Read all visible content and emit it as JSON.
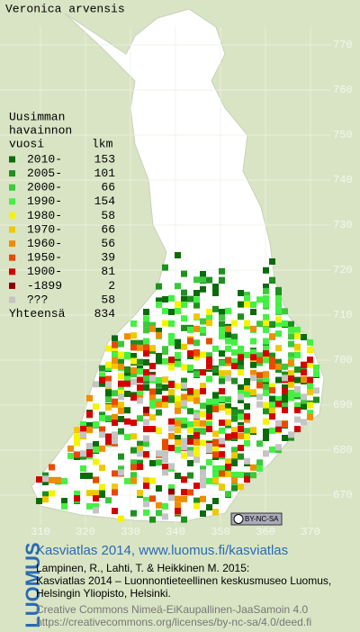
{
  "title": "Veronica arvensis",
  "legend": {
    "header": [
      "Uusimman",
      "havainnon",
      "vuosi"
    ],
    "count_header": "lkm",
    "entries": [
      {
        "label": "2010-",
        "count": 153,
        "color": "#0b6b0b"
      },
      {
        "label": "2005-",
        "count": 101,
        "color": "#1f8f1f"
      },
      {
        "label": "2000-",
        "count": 66,
        "color": "#3cc83c"
      },
      {
        "label": "1990-",
        "count": 154,
        "color": "#44f044"
      },
      {
        "label": "1980-",
        "count": 58,
        "color": "#f4f400"
      },
      {
        "label": "1970-",
        "count": 66,
        "color": "#f0c800"
      },
      {
        "label": "1960-",
        "count": 56,
        "color": "#f08c00"
      },
      {
        "label": "1950-",
        "count": 39,
        "color": "#e84a00"
      },
      {
        "label": "1900-",
        "count": 81,
        "color": "#d40000"
      },
      {
        "label": "-1899",
        "count": 2,
        "color": "#8c0000"
      },
      {
        "label": "???",
        "count": 58,
        "color": "#c4c4c4"
      }
    ],
    "total_label": "Yhteensä",
    "total": 834
  },
  "grid": {
    "y_labels": [
      670,
      680,
      690,
      700,
      710,
      720,
      730,
      740,
      750,
      760,
      770
    ],
    "x_labels": [
      310,
      320,
      330,
      340,
      350,
      360,
      370
    ]
  },
  "badge": "BY-NC-SA",
  "footer": {
    "logo": "LUOMUS",
    "link": "Kasviatlas 2014, www.luomus.fi/kasviatlas",
    "citation": [
      "Lampinen, R., Lahti, T. & Heikkinen M. 2015:",
      "Kasviatlas 2014 – Luonnontieteellinen keskusmuseo Luomus,",
      "Helsingin Yliopisto, Helsinki."
    ],
    "license": [
      "Creative Commons Nimeä-EiKaupallinen-JaaSamoin 4.0",
      "https://creativecommons.org/licenses/by-nc-sa/4.0/deed.fi"
    ]
  }
}
